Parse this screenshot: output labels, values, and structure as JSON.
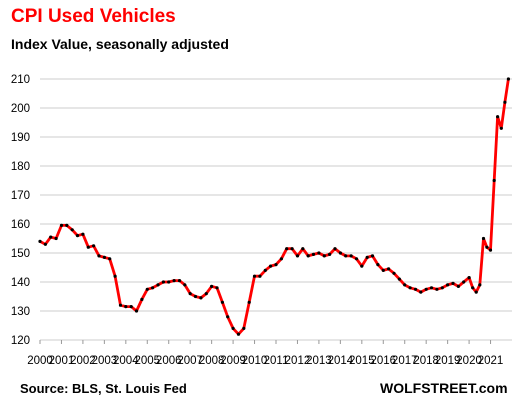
{
  "chart_data": {
    "type": "line",
    "title": "CPI Used Vehicles",
    "subtitle": "Index Value, seasonally adjusted",
    "source": "Source: BLS, St. Louis Fed",
    "brand": "WOLFSTREET.com",
    "xlabel": "",
    "ylabel": "",
    "ylim": [
      120,
      210
    ],
    "xlim": [
      2000,
      2022
    ],
    "y_ticks": [
      "120",
      "130",
      "140",
      "150",
      "160",
      "170",
      "180",
      "190",
      "200",
      "210"
    ],
    "x_ticks": [
      "2000",
      "2001",
      "2002",
      "2003",
      "2004",
      "2005",
      "2006",
      "2007",
      "2008",
      "2009",
      "2010",
      "2011",
      "2012",
      "2013",
      "2014",
      "2015",
      "2016",
      "2017",
      "2018",
      "2019",
      "2020",
      "2021"
    ],
    "grid": "horizontal",
    "legend": "none",
    "line_color": "#ff0000",
    "marker_color": "#000000",
    "series": [
      {
        "x": [
          2000.0,
          2000.25,
          2000.5,
          2000.75,
          2001.0,
          2001.25,
          2001.5,
          2001.75,
          2002.0,
          2002.25,
          2002.5,
          2002.75,
          2003.0,
          2003.25,
          2003.5,
          2003.75,
          2004.0,
          2004.25,
          2004.5,
          2004.75,
          2005.0,
          2005.25,
          2005.5,
          2005.75,
          2006.0,
          2006.25,
          2006.5,
          2006.75,
          2007.0,
          2007.25,
          2007.5,
          2007.75,
          2008.0,
          2008.25,
          2008.5,
          2008.75,
          2009.0,
          2009.25,
          2009.5,
          2009.75,
          2010.0,
          2010.25,
          2010.5,
          2010.75,
          2011.0,
          2011.25,
          2011.5,
          2011.75,
          2012.0,
          2012.25,
          2012.5,
          2012.75,
          2013.0,
          2013.25,
          2013.5,
          2013.75,
          2014.0,
          2014.25,
          2014.5,
          2014.75,
          2015.0,
          2015.25,
          2015.5,
          2015.75,
          2016.0,
          2016.25,
          2016.5,
          2016.75,
          2017.0,
          2017.25,
          2017.5,
          2017.75,
          2018.0,
          2018.25,
          2018.5,
          2018.75,
          2019.0,
          2019.25,
          2019.5,
          2019.75,
          2020.0,
          2020.17,
          2020.33,
          2020.5,
          2020.67,
          2020.83,
          2021.0,
          2021.17,
          2021.33,
          2021.5,
          2021.67,
          2021.83
        ],
        "y": [
          154,
          153,
          155.5,
          155,
          159.5,
          159.5,
          158,
          156,
          156.5,
          152,
          152.5,
          149,
          148.5,
          148,
          142,
          132,
          131.5,
          131.5,
          130,
          134,
          137.5,
          138,
          139,
          140,
          140,
          140.5,
          140.5,
          139,
          136,
          135,
          134.5,
          136,
          138.5,
          138,
          133,
          128,
          124,
          122,
          124,
          133,
          142,
          142,
          144,
          145.5,
          146,
          148,
          151.5,
          151.5,
          149,
          151.5,
          149,
          149.5,
          150,
          149,
          149.5,
          151.5,
          150,
          149,
          149,
          148,
          145.5,
          148.5,
          149,
          146,
          144,
          144.5,
          143,
          141,
          139,
          138,
          137.5,
          136.5,
          137.5,
          138,
          137.5,
          138,
          139,
          139.5,
          138.5,
          140,
          141.5,
          138,
          136.5,
          139,
          155,
          152,
          151,
          175,
          197,
          193,
          202,
          210
        ]
      }
    ]
  }
}
